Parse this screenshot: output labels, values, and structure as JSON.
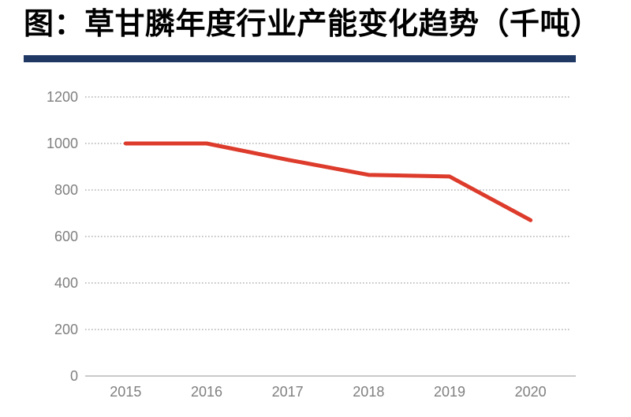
{
  "header": {
    "title": "图：草甘膦年度行业产能变化趋势（千吨）",
    "underline_color": "#1f3864"
  },
  "chart_data": {
    "type": "line",
    "title": "图：草甘膦年度行业产能变化趋势（千吨）",
    "categories": [
      "2015",
      "2016",
      "2017",
      "2018",
      "2019",
      "2020"
    ],
    "values": [
      1000,
      1000,
      930,
      865,
      858,
      670
    ],
    "xlabel": "",
    "ylabel": "",
    "ylim": [
      0,
      1200
    ],
    "y_ticks": [
      0,
      200,
      400,
      600,
      800,
      1000,
      1200
    ],
    "grid": "horizontal-dotted",
    "legend": "none",
    "line_color": "#dd3b2b",
    "tick_label_color": "#7f7f7f",
    "gridline_color": "#8c8c8c",
    "baseline_color": "#c9c9c9"
  }
}
